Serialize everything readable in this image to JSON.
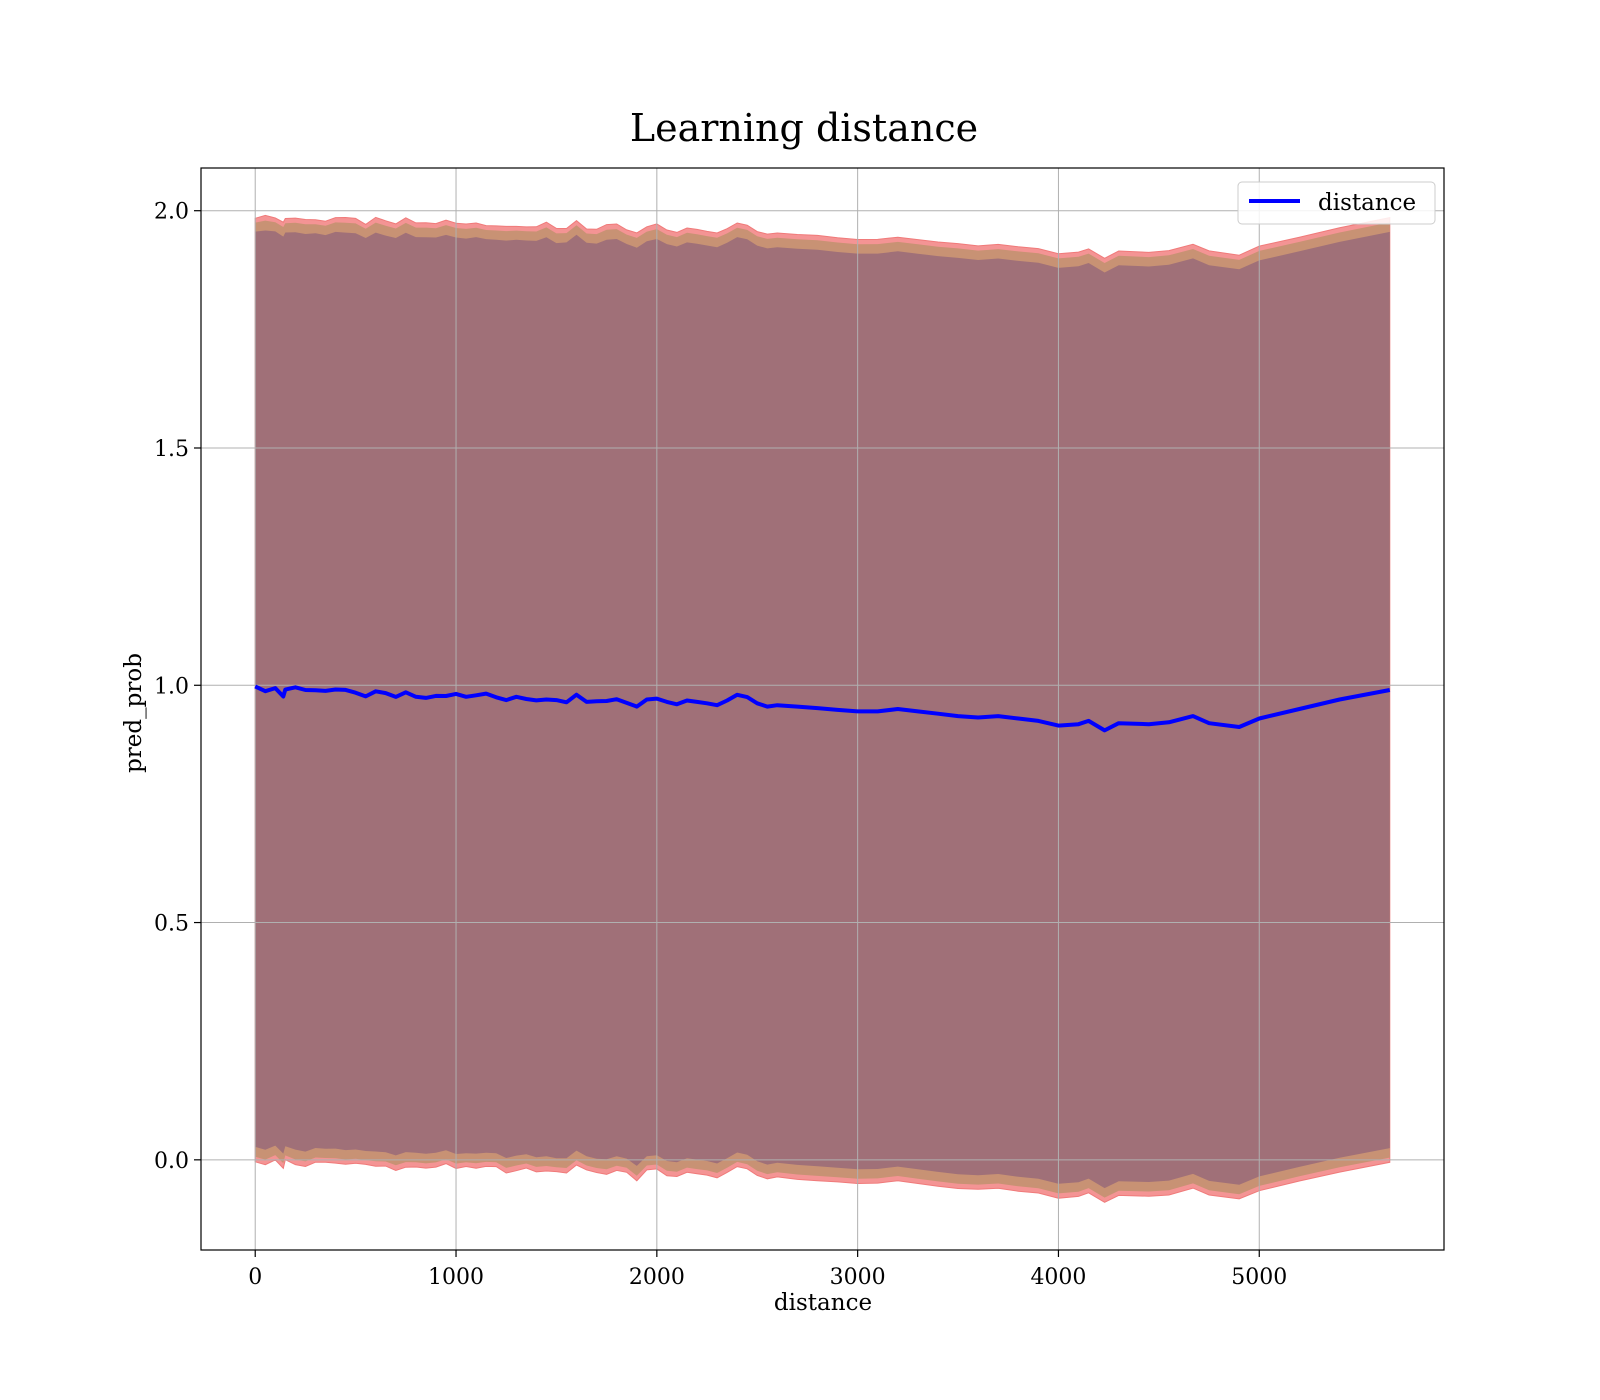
{
  "chart_data": {
    "type": "line",
    "title": "Learning distance",
    "xlabel": "distance",
    "ylabel": "pred_prob",
    "xlim": [
      -270,
      5920
    ],
    "ylim": [
      -0.19,
      2.09
    ],
    "xticks": [
      0,
      1000,
      2000,
      3000,
      4000,
      5000
    ],
    "xtick_labels": [
      "0",
      "1000",
      "2000",
      "3000",
      "4000",
      "5000"
    ],
    "yticks": [
      0.0,
      0.5,
      1.0,
      1.5,
      2.0
    ],
    "ytick_labels": [
      "0.0",
      "0.5",
      "1.0",
      "1.5",
      "2.0"
    ],
    "grid": true,
    "legend": {
      "position": "upper right",
      "entries": [
        "distance"
      ]
    },
    "colors": {
      "line": "#0000ff",
      "band_outer": "#f49494",
      "band_middle": "#c89274",
      "band_inner": "#a07078",
      "grid": "#b0b0b0"
    },
    "series": [
      {
        "name": "distance",
        "x": [
          0,
          50,
          100,
          140,
          150,
          200,
          250,
          300,
          350,
          400,
          450,
          500,
          550,
          600,
          650,
          700,
          750,
          800,
          850,
          900,
          950,
          1000,
          1050,
          1100,
          1150,
          1200,
          1250,
          1300,
          1350,
          1400,
          1450,
          1500,
          1550,
          1600,
          1650,
          1700,
          1750,
          1800,
          1850,
          1900,
          1950,
          2000,
          2050,
          2100,
          2150,
          2200,
          2250,
          2300,
          2350,
          2400,
          2450,
          2500,
          2550,
          2600,
          2700,
          2800,
          2900,
          3000,
          3100,
          3200,
          3300,
          3400,
          3500,
          3600,
          3700,
          3800,
          3900,
          4000,
          4100,
          4150,
          4230,
          4300,
          4450,
          4550,
          4670,
          4750,
          4900,
          5000,
          5200,
          5400,
          5650
        ],
        "y": [
          0.995,
          0.99,
          0.995,
          0.98,
          0.99,
          0.99,
          0.985,
          0.99,
          0.985,
          0.99,
          0.985,
          0.985,
          0.98,
          0.985,
          0.98,
          0.978,
          0.985,
          0.98,
          0.978,
          0.98,
          0.982,
          0.978,
          0.975,
          0.98,
          0.978,
          0.975,
          0.972,
          0.978,
          0.975,
          0.972,
          0.975,
          0.965,
          0.97,
          0.985,
          0.97,
          0.965,
          0.97,
          0.972,
          0.965,
          0.955,
          0.97,
          0.972,
          0.965,
          0.96,
          0.968,
          0.965,
          0.962,
          0.958,
          0.968,
          0.98,
          0.975,
          0.962,
          0.955,
          0.958,
          0.955,
          0.952,
          0.948,
          0.945,
          0.945,
          0.95,
          0.945,
          0.94,
          0.935,
          0.932,
          0.935,
          0.93,
          0.925,
          0.915,
          0.918,
          0.925,
          0.905,
          0.92,
          0.918,
          0.922,
          0.935,
          0.92,
          0.912,
          0.93,
          0.95,
          0.97,
          0.99
        ]
      }
    ],
    "band_offsets": {
      "outer": 0.995,
      "middle": 0.985,
      "inner": 0.965
    }
  }
}
